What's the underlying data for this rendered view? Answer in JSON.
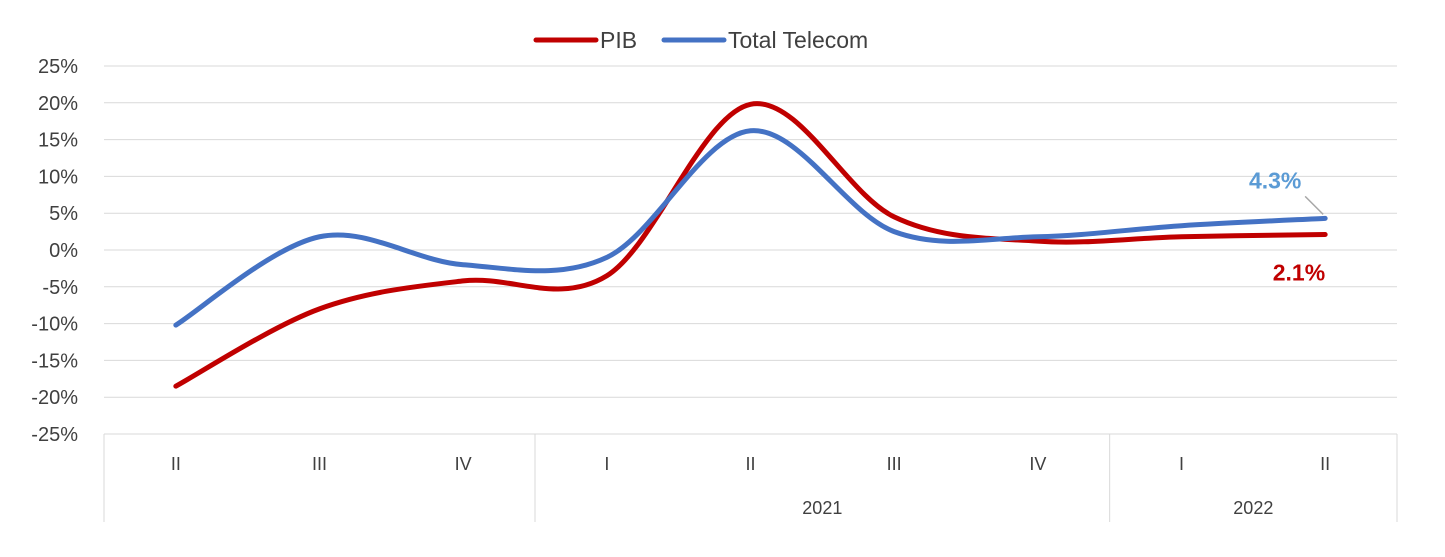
{
  "chart_data": {
    "type": "line",
    "categories": [
      "II",
      "III",
      "IV",
      "I",
      "II",
      "III",
      "IV",
      "I",
      "II"
    ],
    "groups": [
      {
        "label": "",
        "span": 3
      },
      {
        "label": "2021",
        "span": 4
      },
      {
        "label": "2022",
        "span": 2
      }
    ],
    "series": [
      {
        "name": "PIB",
        "color": "#c00000",
        "values": [
          -18.5,
          -8.0,
          -4.2,
          -3.5,
          19.8,
          4.5,
          1.2,
          1.8,
          2.1
        ]
      },
      {
        "name": "Total Telecom",
        "color": "#4472c4",
        "values": [
          -10.2,
          1.8,
          -2.0,
          -1.0,
          16.2,
          2.5,
          1.8,
          3.3,
          4.3
        ]
      }
    ],
    "ylim": [
      -25,
      25
    ],
    "y_ticks": [
      "25%",
      "20%",
      "15%",
      "10%",
      "5%",
      "0%",
      "-5%",
      "-10%",
      "-15%",
      "-20%",
      "-25%"
    ],
    "legend_position": "top",
    "grid": true,
    "data_labels": [
      {
        "series": "Total Telecom",
        "text": "4.3%",
        "color": "#5b9bd5"
      },
      {
        "series": "PIB",
        "text": "2.1%",
        "color": "#c00000"
      }
    ]
  }
}
